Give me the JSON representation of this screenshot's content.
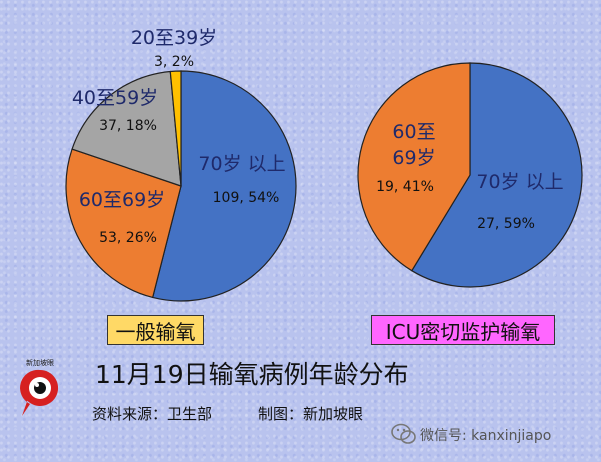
{
  "chart_data": [
    {
      "type": "pie",
      "title": "",
      "colors": [
        "#4472c4",
        "#ed7d31",
        "#a5a5a5",
        "#ffc000"
      ],
      "slices": [
        {
          "label_line1": "70岁 以上",
          "label_line2": "",
          "value": 109,
          "value_label": "109, 54%"
        },
        {
          "label_line1": "60至69岁",
          "label_line2": "",
          "value": 53,
          "value_label": "53, 26%"
        },
        {
          "label_line1": "40至59岁",
          "label_line2": "",
          "value": 37,
          "value_label": "37, 18%"
        },
        {
          "label_line1": "20至39岁",
          "label_line2": "",
          "value": 3,
          "value_label": "3, 2%"
        }
      ],
      "caption": "一般输氧"
    },
    {
      "type": "pie",
      "title": "",
      "colors": [
        "#4472c4",
        "#ed7d31"
      ],
      "slices": [
        {
          "label_line1": "70岁 以上",
          "label_line2": "",
          "value": 27,
          "value_label": "27, 59%"
        },
        {
          "label_line1": "60至",
          "label_line2": "69岁",
          "value": 19,
          "value_label": "19, 41%"
        }
      ],
      "caption": "ICU密切监护输氧"
    }
  ],
  "title": "11月19日输氧病例年龄分布",
  "source": "资料来源：卫生部",
  "credit": "制图：新加坡眼",
  "logo_text": "新加坡眼",
  "watermark": "微信号: kanxinjiapo",
  "caption_colors": [
    "#ffd966",
    "#ff66ff"
  ]
}
